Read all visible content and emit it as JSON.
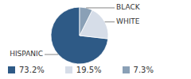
{
  "chart_data": {
    "type": "pie",
    "categories": [
      "HISPANIC",
      "WHITE",
      "BLACK"
    ],
    "values": [
      73.2,
      19.5,
      7.3
    ],
    "value_labels": [
      "73.2%",
      "19.5%",
      "7.3%"
    ],
    "colors": [
      "#2e5a86",
      "#d6dde8",
      "#8aa0b6"
    ]
  }
}
